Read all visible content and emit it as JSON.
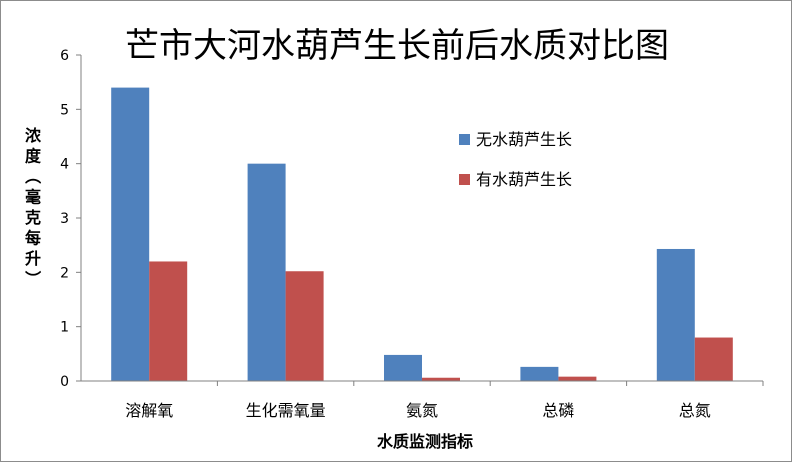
{
  "chart_data": {
    "type": "bar",
    "title": "芒市大河水葫芦生长前后水质对比图",
    "xlabel": "水质监测指标",
    "ylabel": "浓度（毫克每升）",
    "categories": [
      "溶解氧",
      "生化需氧量",
      "氨氮",
      "总磷",
      "总氮"
    ],
    "series": [
      {
        "name": "无水葫芦生长",
        "color": "#4f81bd",
        "values": [
          5.4,
          4.0,
          0.48,
          0.26,
          2.43
        ]
      },
      {
        "name": "有水葫芦生长",
        "color": "#c0504d",
        "values": [
          2.2,
          2.02,
          0.06,
          0.08,
          0.8
        ]
      }
    ],
    "ylim": [
      0,
      6
    ],
    "yticks": [
      "0",
      "1",
      "2",
      "3",
      "4",
      "5",
      "6"
    ],
    "grid": false,
    "legend_position": "right-inside"
  }
}
